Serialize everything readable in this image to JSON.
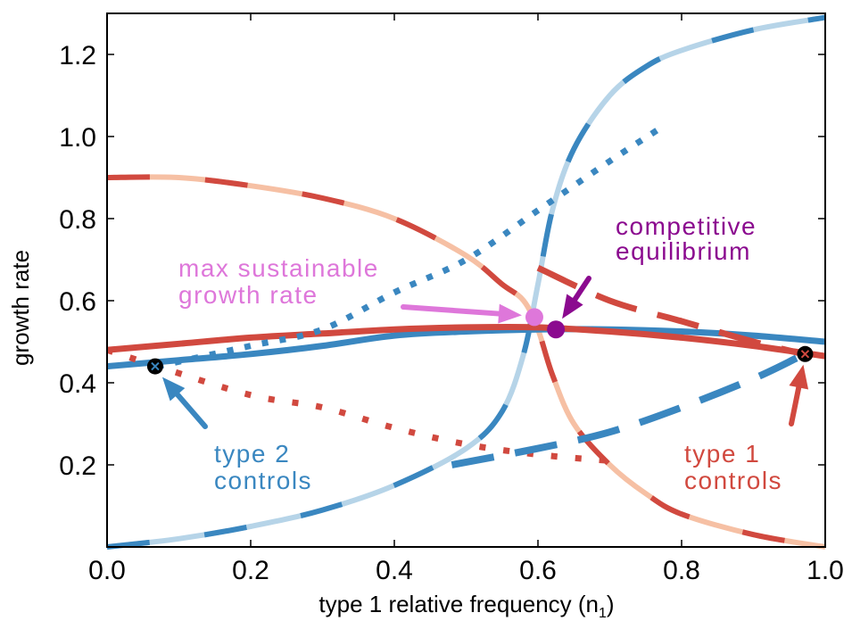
{
  "chart_data": {
    "type": "line",
    "xlabel": "type 1 relative frequency (n",
    "xlabel_sub": "1",
    "xlabel_close": ")",
    "ylabel": "growth rate",
    "xlim": [
      0.0,
      1.0
    ],
    "ylim": [
      0.0,
      1.3
    ],
    "xticks": [
      "0.0",
      "0.2",
      "0.4",
      "0.6",
      "0.8",
      "1.0"
    ],
    "yticks": [
      "0.2",
      "0.4",
      "0.6",
      "0.8",
      "1.0",
      "1.2"
    ],
    "grid": false,
    "colors": {
      "blue": "#3a87c0",
      "blue_light": "#b6d4e8",
      "red": "#d1493f",
      "red_light": "#f6c0a4",
      "pink": "#de77da",
      "purple": "#8b0a8f"
    },
    "series": [
      {
        "style": "light-blue-solid-with-dark-blue-dashes",
        "x": [
          0.0,
          0.1,
          0.2,
          0.3,
          0.4,
          0.5,
          0.55,
          0.58,
          0.6,
          0.62,
          0.65,
          0.7,
          0.75,
          0.8,
          0.9,
          1.0
        ],
        "y": [
          0.0,
          0.02,
          0.05,
          0.09,
          0.15,
          0.24,
          0.33,
          0.47,
          0.64,
          0.82,
          0.97,
          1.1,
          1.17,
          1.21,
          1.26,
          1.29
        ]
      },
      {
        "style": "light-orange-solid-with-dark-red-dashes",
        "x": [
          0.0,
          0.1,
          0.2,
          0.3,
          0.4,
          0.5,
          0.55,
          0.58,
          0.6,
          0.62,
          0.65,
          0.7,
          0.75,
          0.8,
          0.9,
          1.0
        ],
        "y": [
          0.9,
          0.9,
          0.88,
          0.85,
          0.8,
          0.71,
          0.64,
          0.6,
          0.53,
          0.42,
          0.3,
          0.2,
          0.13,
          0.08,
          0.03,
          0.0
        ]
      },
      {
        "style": "blue-solid",
        "x": [
          0.0,
          0.1,
          0.2,
          0.3,
          0.4,
          0.5,
          0.6,
          0.7,
          0.8,
          0.9,
          1.0
        ],
        "y": [
          0.44,
          0.455,
          0.47,
          0.49,
          0.515,
          0.525,
          0.53,
          0.53,
          0.525,
          0.515,
          0.5
        ]
      },
      {
        "style": "red-solid",
        "x": [
          0.0,
          0.1,
          0.2,
          0.3,
          0.4,
          0.5,
          0.6,
          0.7,
          0.8,
          0.9,
          1.0
        ],
        "y": [
          0.48,
          0.495,
          0.51,
          0.52,
          0.53,
          0.535,
          0.535,
          0.525,
          0.51,
          0.49,
          0.465
        ]
      },
      {
        "style": "blue-dotted",
        "x": [
          0.07,
          0.2,
          0.3,
          0.4,
          0.5,
          0.6,
          0.7,
          0.77
        ],
        "y": [
          0.44,
          0.49,
          0.53,
          0.62,
          0.7,
          0.82,
          0.94,
          1.02
        ]
      },
      {
        "style": "red-dotted",
        "x": [
          0.0,
          0.07,
          0.2,
          0.3,
          0.4,
          0.5,
          0.6,
          0.7
        ],
        "y": [
          0.48,
          0.44,
          0.37,
          0.34,
          0.29,
          0.25,
          0.225,
          0.21
        ]
      },
      {
        "style": "blue-long-dashed",
        "x": [
          0.48,
          0.6,
          0.7,
          0.8,
          0.9,
          0.96
        ],
        "y": [
          0.2,
          0.24,
          0.28,
          0.34,
          0.41,
          0.46
        ]
      },
      {
        "style": "red-long-dashed",
        "x": [
          0.6,
          0.7,
          0.8,
          0.9,
          0.97
        ],
        "y": [
          0.68,
          0.6,
          0.55,
          0.5,
          0.47
        ]
      }
    ],
    "points": [
      {
        "x": 0.067,
        "y": 0.44,
        "style": "black-x-marker"
      },
      {
        "x": 0.972,
        "y": 0.47,
        "style": "black-x-marker"
      },
      {
        "x": 0.595,
        "y": 0.56,
        "style": "pink-dot"
      },
      {
        "x": 0.625,
        "y": 0.53,
        "style": "purple-dot"
      }
    ],
    "annotations": [
      {
        "lines": [
          "max sustainable",
          "growth rate"
        ],
        "color": "#de77da"
      },
      {
        "lines": [
          "competitive",
          "equilibrium"
        ],
        "color": "#8b0a8f"
      },
      {
        "lines": [
          "type 2",
          "controls"
        ],
        "color": "#3a87c0"
      },
      {
        "lines": [
          "type 1",
          "controls"
        ],
        "color": "#d1493f"
      }
    ]
  }
}
